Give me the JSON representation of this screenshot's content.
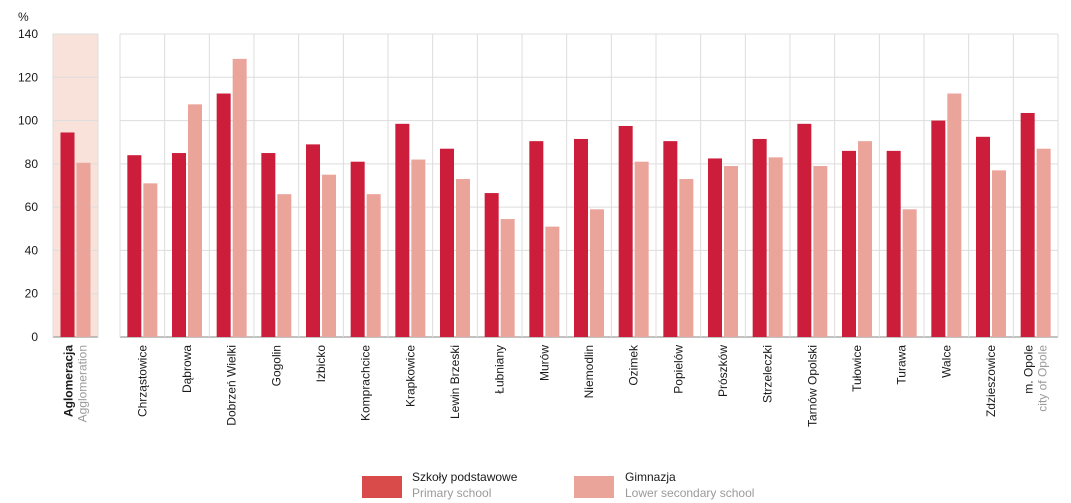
{
  "chart_data": {
    "type": "bar",
    "ylabel": "%",
    "ylim": [
      0,
      140
    ],
    "yticks": [
      0,
      20,
      40,
      60,
      80,
      100,
      120,
      140
    ],
    "grid": true,
    "legend_position": "bottom",
    "highlight_category_color": "#f8e2da",
    "categories": [
      {
        "label": "Aglomeracja",
        "sublabel": "Agglomeration",
        "highlight": true
      },
      {
        "label": "Chrząstowice"
      },
      {
        "label": "Dąbrowa"
      },
      {
        "label": "Dobrzeń Wielki"
      },
      {
        "label": "Gogolin"
      },
      {
        "label": "Izbicko"
      },
      {
        "label": "Komprachcice"
      },
      {
        "label": "Krapkowice"
      },
      {
        "label": "Lewin Brzeski"
      },
      {
        "label": "Łubniany"
      },
      {
        "label": "Murów"
      },
      {
        "label": "Niemodlin"
      },
      {
        "label": "Ozimek"
      },
      {
        "label": "Popielów"
      },
      {
        "label": "Prószków"
      },
      {
        "label": "Strzeleczki"
      },
      {
        "label": "Tarnów Opolski"
      },
      {
        "label": "Tułowice"
      },
      {
        "label": "Turawa"
      },
      {
        "label": "Walce"
      },
      {
        "label": "Zdzieszowice"
      },
      {
        "label": "m. Opole",
        "sublabel": "city of Opole"
      }
    ],
    "series": [
      {
        "name": "Szkoły podstawowe",
        "name_en": "Primary school",
        "color": "#cc1e3a",
        "legend_color": "#d94b4b",
        "values": [
          94.5,
          84,
          85,
          112.5,
          85,
          89,
          81,
          98.5,
          87,
          66.5,
          90.5,
          91.5,
          97.5,
          90.5,
          82.5,
          91.5,
          98.5,
          86,
          86,
          100,
          92.5,
          103.5
        ]
      },
      {
        "name": "Gimnazja",
        "name_en": "Lower secondary school",
        "color": "#eba49a",
        "legend_color": "#eba49a",
        "values": [
          80.5,
          71,
          107.5,
          128.5,
          66,
          75,
          66,
          82,
          73,
          54.5,
          51,
          59,
          81,
          73,
          79,
          83,
          79,
          90.5,
          59,
          112.5,
          77,
          87
        ]
      }
    ]
  }
}
